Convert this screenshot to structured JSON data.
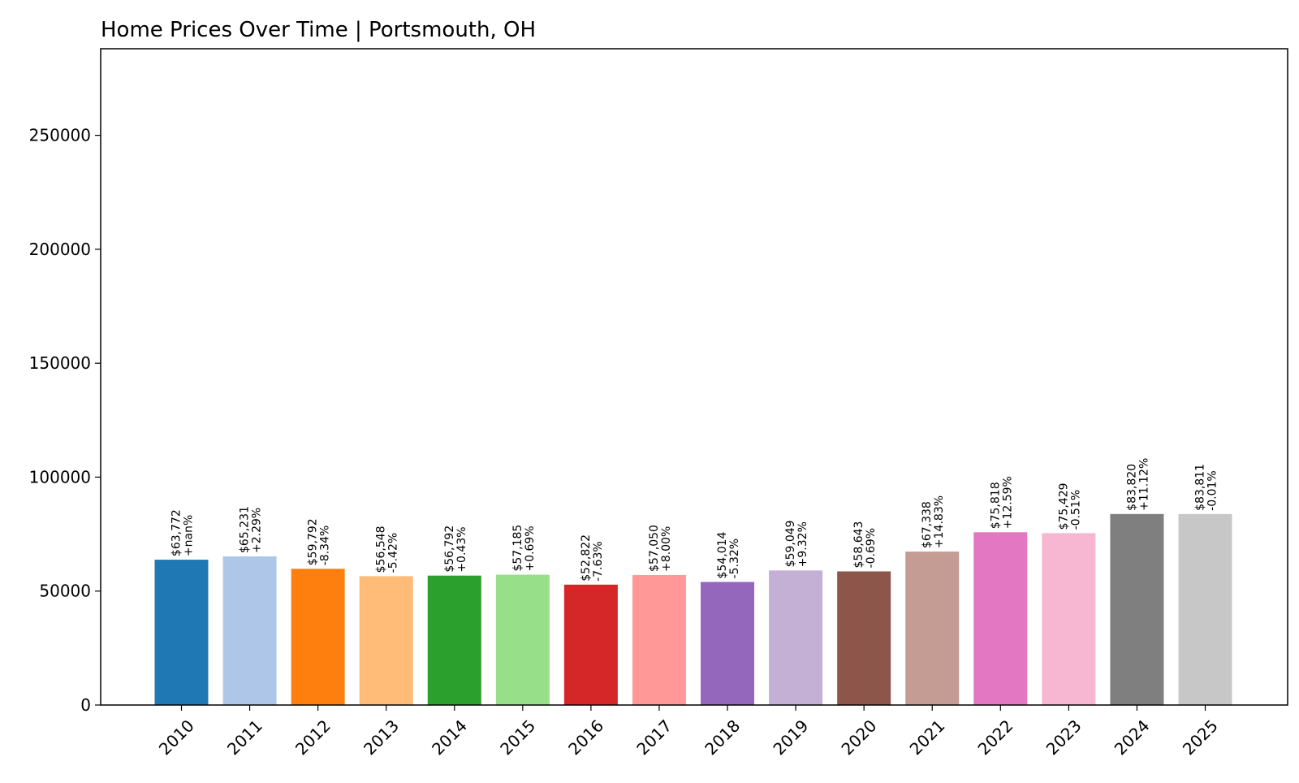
{
  "chart_data": {
    "type": "bar",
    "title": "Home Prices Over Time | Portsmouth, OH",
    "xlabel": "",
    "ylabel": "",
    "ylim": [
      0,
      288000
    ],
    "grid": false,
    "yticks": [
      0,
      50000,
      100000,
      150000,
      200000,
      250000
    ],
    "ytick_labels": [
      "0",
      "50000",
      "100000",
      "150000",
      "200000",
      "250000"
    ],
    "categories": [
      "2010",
      "2011",
      "2012",
      "2013",
      "2014",
      "2015",
      "2016",
      "2017",
      "2018",
      "2019",
      "2020",
      "2021",
      "2022",
      "2023",
      "2024",
      "2025"
    ],
    "values": [
      63772,
      65231,
      59792,
      56548,
      56792,
      57185,
      52822,
      57050,
      54014,
      59049,
      58643,
      67338,
      75818,
      75429,
      83820,
      83811
    ],
    "value_labels": [
      "$63,772",
      "$65,231",
      "$59,792",
      "$56,548",
      "$56,792",
      "$57,185",
      "$52,822",
      "$57,050",
      "$54,014",
      "$59,049",
      "$58,643",
      "$67,338",
      "$75,818",
      "$75,429",
      "$83,820",
      "$83,811"
    ],
    "change_labels": [
      "+nan%",
      "+2.29%",
      "-8.34%",
      "-5.42%",
      "+0.43%",
      "+0.69%",
      "-7.63%",
      "+8.00%",
      "-5.32%",
      "+9.32%",
      "-0.69%",
      "+14.83%",
      "+12.59%",
      "-0.51%",
      "+11.12%",
      "-0.01%"
    ],
    "colors": [
      "#1f77b4",
      "#aec7e8",
      "#ff7f0e",
      "#ffbb78",
      "#2ca02c",
      "#98df8a",
      "#d62728",
      "#ff9896",
      "#9467bd",
      "#c5b0d5",
      "#8c564b",
      "#c49c94",
      "#e377c2",
      "#f7b6d2",
      "#7f7f7f",
      "#c7c7c7"
    ]
  }
}
